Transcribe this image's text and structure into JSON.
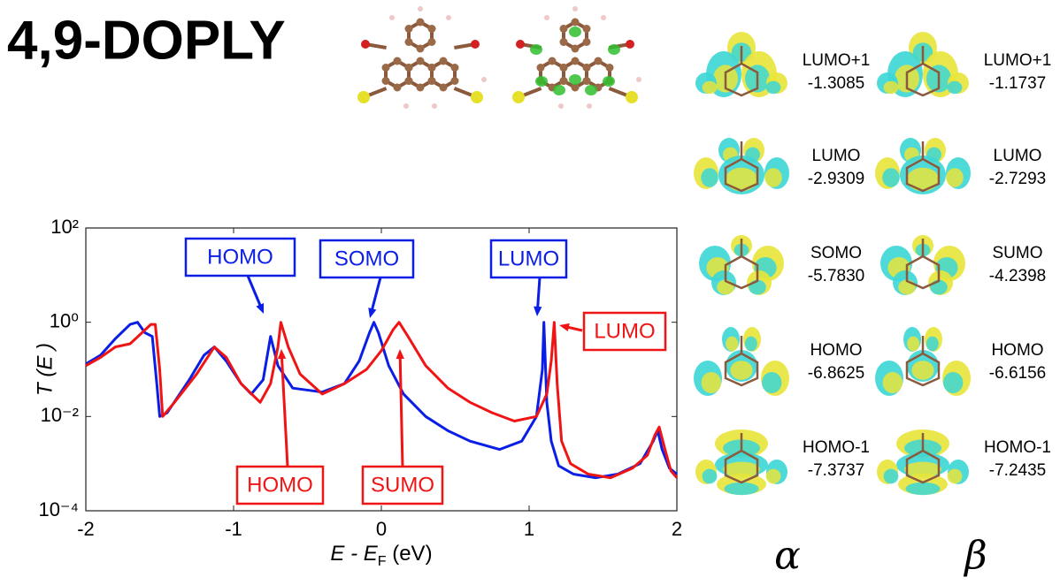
{
  "title": "4,9-DOPLY",
  "chart_data": {
    "type": "line",
    "yscale": "log",
    "xlabel": [
      "E - E",
      "F",
      " (eV)"
    ],
    "ylabel": "T (E )",
    "xlim": [
      -2,
      2
    ],
    "xticks": [
      -2,
      -1,
      0,
      1,
      2
    ],
    "ylim": [
      0.0001,
      100
    ],
    "yticks": [
      {
        "value": 0.0001,
        "label": "10⁻⁴"
      },
      {
        "value": 0.01,
        "label": "10⁻²"
      },
      {
        "value": 1,
        "label": "10⁰"
      },
      {
        "value": 100,
        "label": "10²"
      }
    ],
    "series": [
      {
        "name": "α",
        "color": "#0a1ee6",
        "x": [
          -2,
          -1.9,
          -1.8,
          -1.7,
          -1.65,
          -1.6,
          -1.55,
          -1.52,
          -1.5,
          -1.45,
          -1.3,
          -1.2,
          -1.13,
          -1.05,
          -0.95,
          -0.88,
          -0.8,
          -0.75,
          -0.7,
          -0.6,
          -0.4,
          -0.25,
          -0.15,
          -0.08,
          -0.05,
          -0.02,
          0.05,
          0.15,
          0.3,
          0.45,
          0.6,
          0.8,
          0.95,
          1.05,
          1.09,
          1.1,
          1.12,
          1.15,
          1.2,
          1.3,
          1.45,
          1.6,
          1.75,
          1.84,
          1.87,
          1.9,
          1.95,
          2
        ],
        "values": [
          0.13,
          0.2,
          0.45,
          0.9,
          1,
          0.6,
          0.5,
          0.05,
          0.01,
          0.012,
          0.06,
          0.2,
          0.3,
          0.15,
          0.05,
          0.03,
          0.06,
          0.5,
          0.12,
          0.04,
          0.033,
          0.05,
          0.15,
          0.6,
          1,
          0.6,
          0.12,
          0.03,
          0.01,
          0.005,
          0.003,
          0.002,
          0.003,
          0.01,
          0.1,
          1,
          0.02,
          0.003,
          0.0009,
          0.0006,
          0.0005,
          0.0006,
          0.001,
          0.003,
          0.005,
          0.002,
          0.0008,
          0.0006
        ]
      },
      {
        "name": "β",
        "color": "#f01414",
        "x": [
          -2,
          -1.9,
          -1.8,
          -1.7,
          -1.62,
          -1.56,
          -1.53,
          -1.5,
          -1.48,
          -1.4,
          -1.25,
          -1.13,
          -1.05,
          -0.95,
          -0.82,
          -0.75,
          -0.7,
          -0.68,
          -0.63,
          -0.55,
          -0.4,
          -0.25,
          -0.1,
          0,
          0.08,
          0.12,
          0.18,
          0.3,
          0.45,
          0.6,
          0.75,
          0.9,
          1.05,
          1.12,
          1.15,
          1.17,
          1.19,
          1.22,
          1.28,
          1.4,
          1.55,
          1.7,
          1.8,
          1.85,
          1.88,
          1.92,
          1.96,
          2
        ],
        "values": [
          0.12,
          0.18,
          0.3,
          0.35,
          0.6,
          0.9,
          0.9,
          0.1,
          0.01,
          0.02,
          0.08,
          0.3,
          0.18,
          0.05,
          0.02,
          0.05,
          0.3,
          1,
          0.3,
          0.08,
          0.03,
          0.05,
          0.1,
          0.25,
          0.7,
          1,
          0.5,
          0.12,
          0.04,
          0.02,
          0.012,
          0.008,
          0.01,
          0.03,
          0.15,
          1,
          0.05,
          0.003,
          0.001,
          0.0006,
          0.0005,
          0.0008,
          0.0015,
          0.004,
          0.006,
          0.002,
          0.0007,
          0.0005
        ]
      }
    ],
    "annotations": [
      {
        "text": "HOMO",
        "color": "#0a1ee6"
      },
      {
        "text": "SOMO",
        "color": "#0a1ee6"
      },
      {
        "text": "LUMO",
        "color": "#0a1ee6"
      },
      {
        "text": "HOMO",
        "color": "#f01414"
      },
      {
        "text": "SUMO",
        "color": "#f01414"
      },
      {
        "text": "LUMO",
        "color": "#f01414"
      }
    ]
  },
  "orbitals": {
    "columns": [
      "α",
      "β"
    ],
    "rows": [
      [
        {
          "label": "LUMO+1",
          "energy": "-1.3085"
        },
        {
          "label": "LUMO+1",
          "energy": "-1.1737"
        }
      ],
      [
        {
          "label": "LUMO",
          "energy": "-2.9309"
        },
        {
          "label": "LUMO",
          "energy": "-2.7293"
        }
      ],
      [
        {
          "label": "SOMO",
          "energy": "-5.7830"
        },
        {
          "label": "SUMO",
          "energy": "-4.2398"
        }
      ],
      [
        {
          "label": "HOMO",
          "energy": "-6.8625"
        },
        {
          "label": "HOMO",
          "energy": "-6.6156"
        }
      ],
      [
        {
          "label": "HOMO-1",
          "energy": "-7.3737"
        },
        {
          "label": "HOMO-1",
          "energy": "-7.2435"
        }
      ]
    ]
  }
}
